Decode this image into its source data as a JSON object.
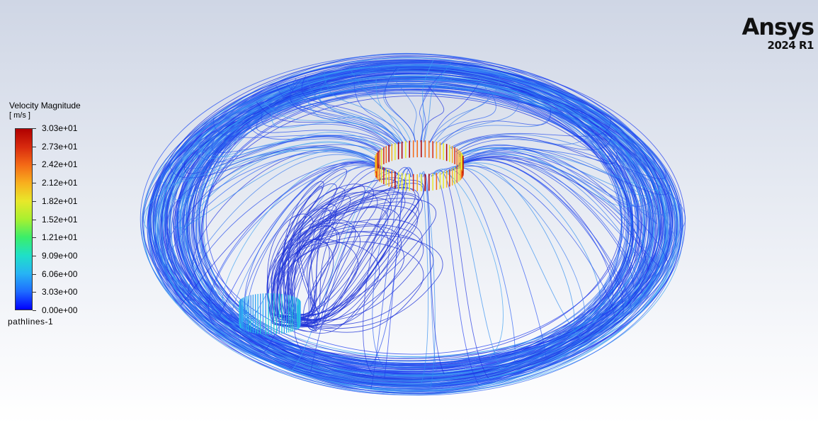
{
  "logo": {
    "name": "Ansys",
    "version": "2024 R1"
  },
  "legend": {
    "title": "Velocity Magnitude",
    "unit": "[ m/s ]",
    "ticks": [
      "3.03e+01",
      "2.73e+01",
      "2.42e+01",
      "2.12e+01",
      "1.82e+01",
      "1.52e+01",
      "1.21e+01",
      "9.09e+00",
      "6.06e+00",
      "3.03e+00",
      "0.00e+00"
    ],
    "colormap": [
      "#0000ff",
      "#1e6cff",
      "#27b4f4",
      "#1fe0c8",
      "#3aee6a",
      "#a8f030",
      "#e8e82a",
      "#f8b01e",
      "#f46a16",
      "#d82a0e",
      "#b00000"
    ]
  },
  "object_name": "pathlines-1",
  "scene": {
    "inlet_color": "#c0180e",
    "pathline_color": "#1a34e0"
  }
}
